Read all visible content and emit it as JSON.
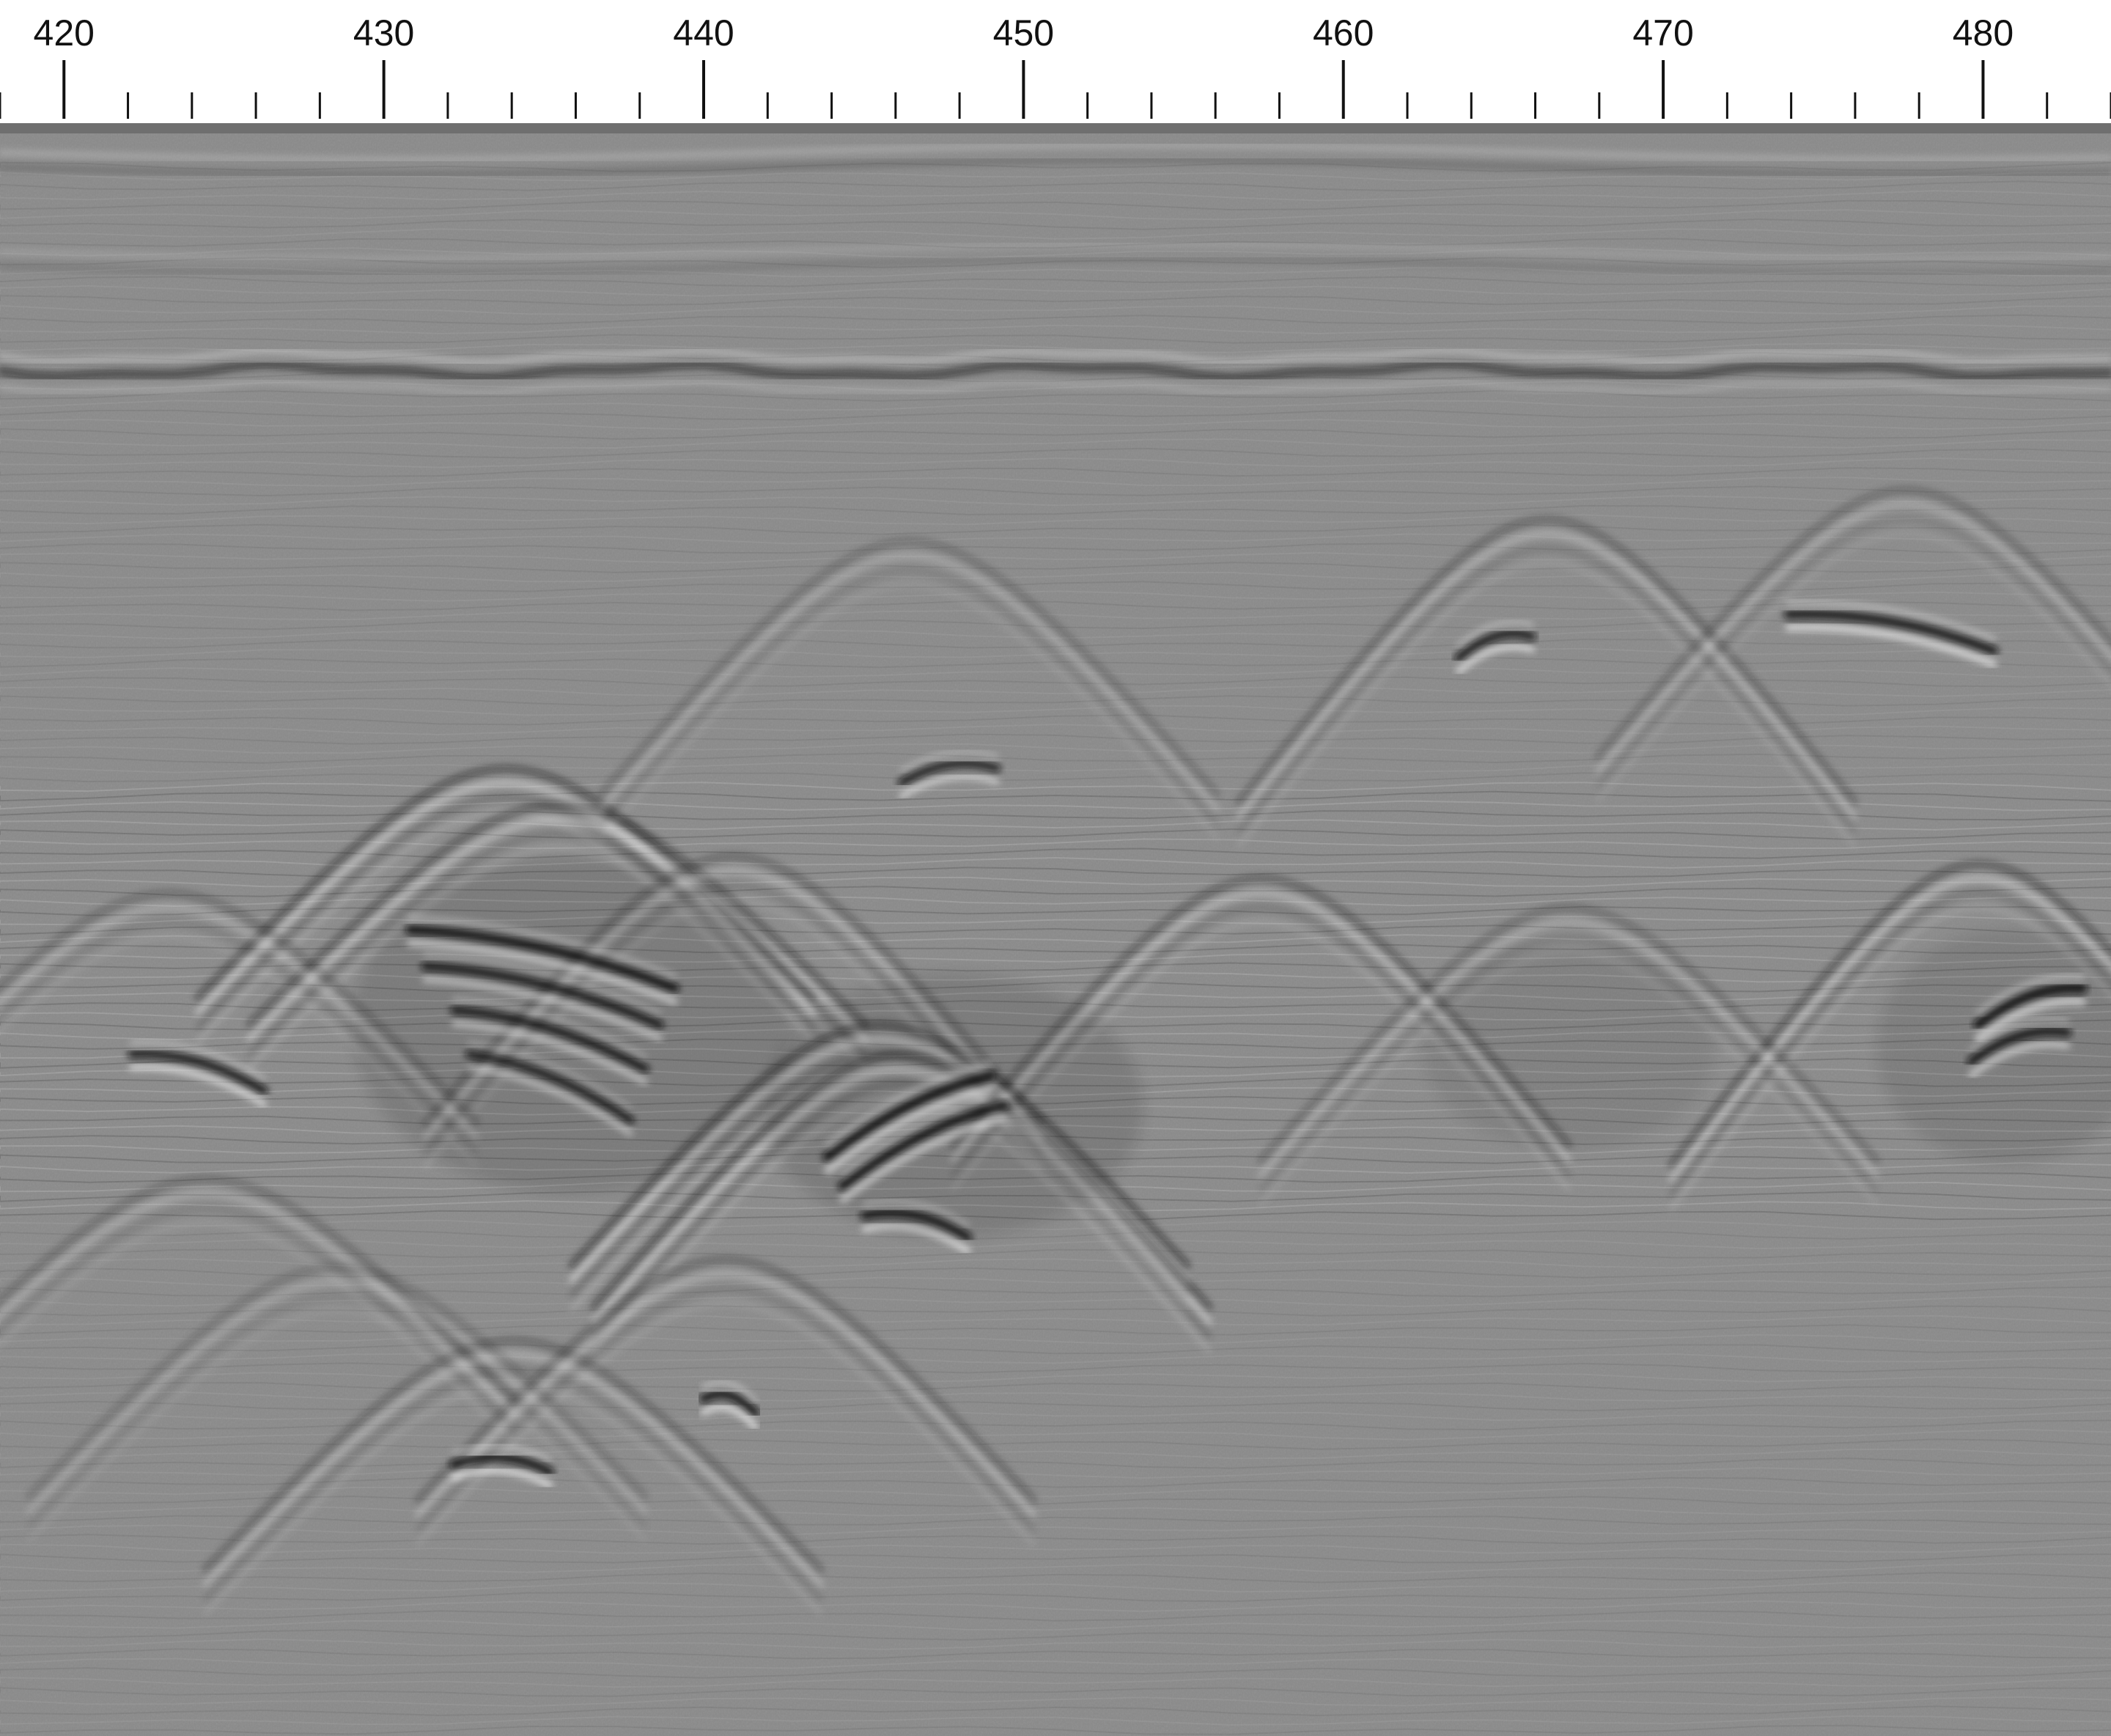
{
  "ruler": {
    "min": 418,
    "max": 484,
    "major_step": 10,
    "minor_step": 2,
    "labels": [
      "420",
      "430",
      "440",
      "450",
      "460",
      "470",
      "480"
    ],
    "tick_color": "#111111"
  },
  "radargram": {
    "background_color": "#8a8a8a",
    "shadow_color": "#111111",
    "highlight_color": "#f2f2f2",
    "top_band_color": "#6f6f6f"
  }
}
